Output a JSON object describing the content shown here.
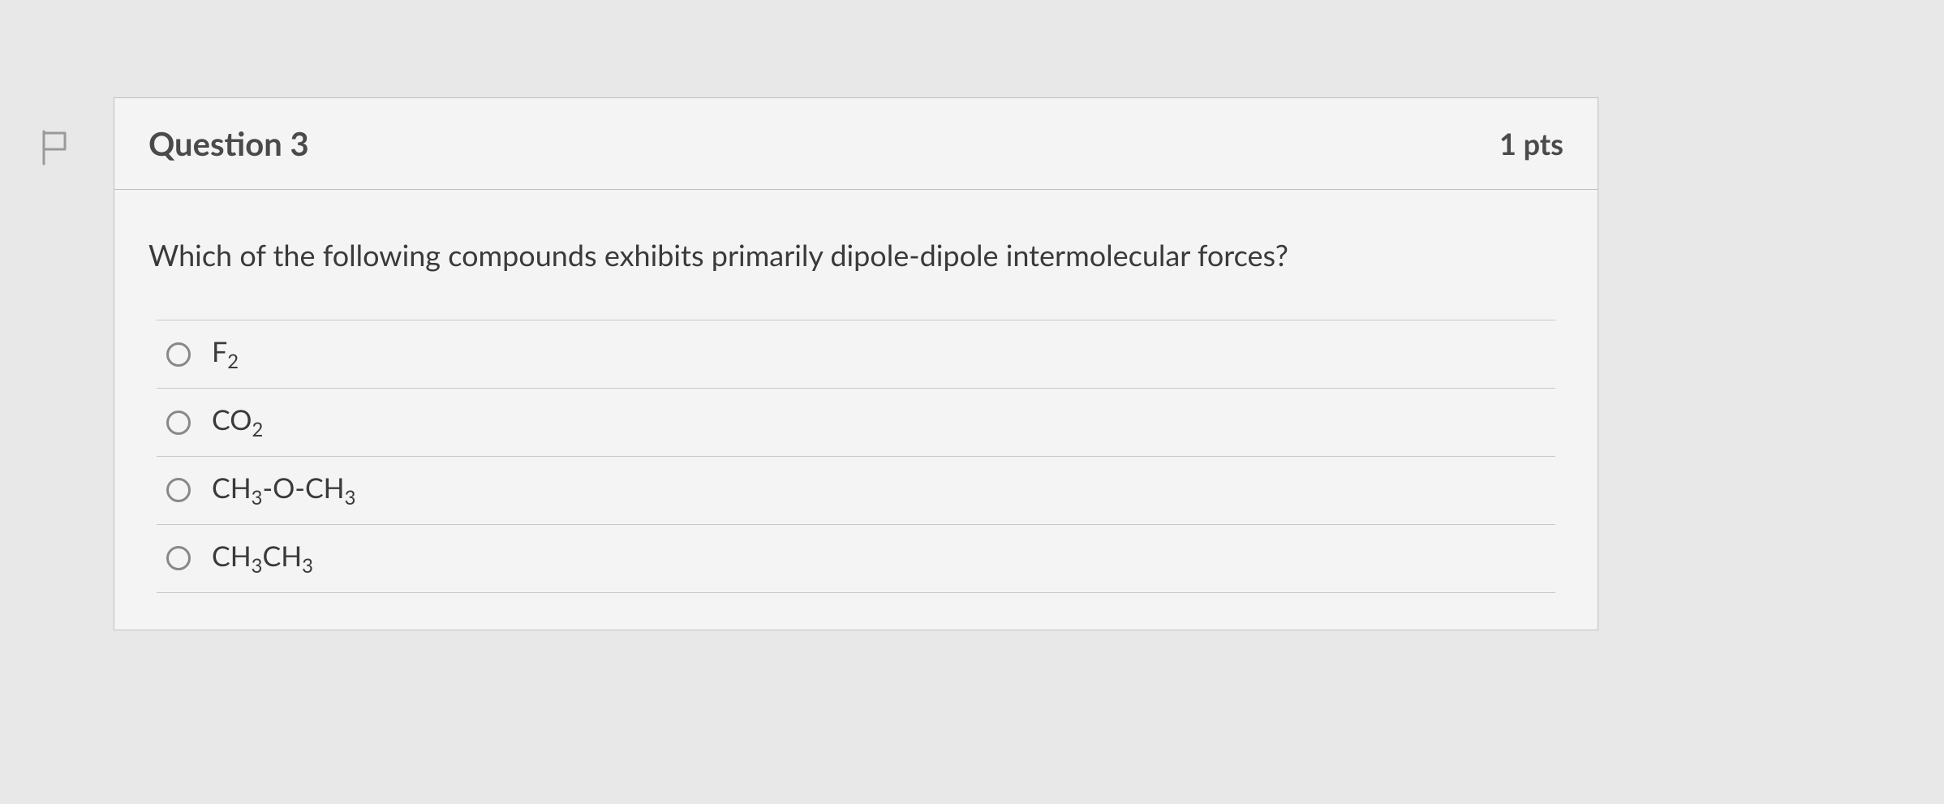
{
  "question": {
    "title": "Question 3",
    "points": "1 pts",
    "text": "Which of the following compounds exhibits primarily dipole-dipole intermolecular forces?",
    "options": [
      {
        "html": "F<sub>2</sub>"
      },
      {
        "html": "CO<sub>2</sub>"
      },
      {
        "html": "CH<sub>3</sub>-O-CH<sub>3</sub>"
      },
      {
        "html": "CH<sub>3</sub>CH<sub>3</sub>"
      }
    ]
  },
  "colors": {
    "page_bg": "#e8e8e8",
    "card_bg": "#f4f4f4",
    "border": "#c0c0c0",
    "text": "#3a3a3a",
    "radio_border": "#888"
  }
}
